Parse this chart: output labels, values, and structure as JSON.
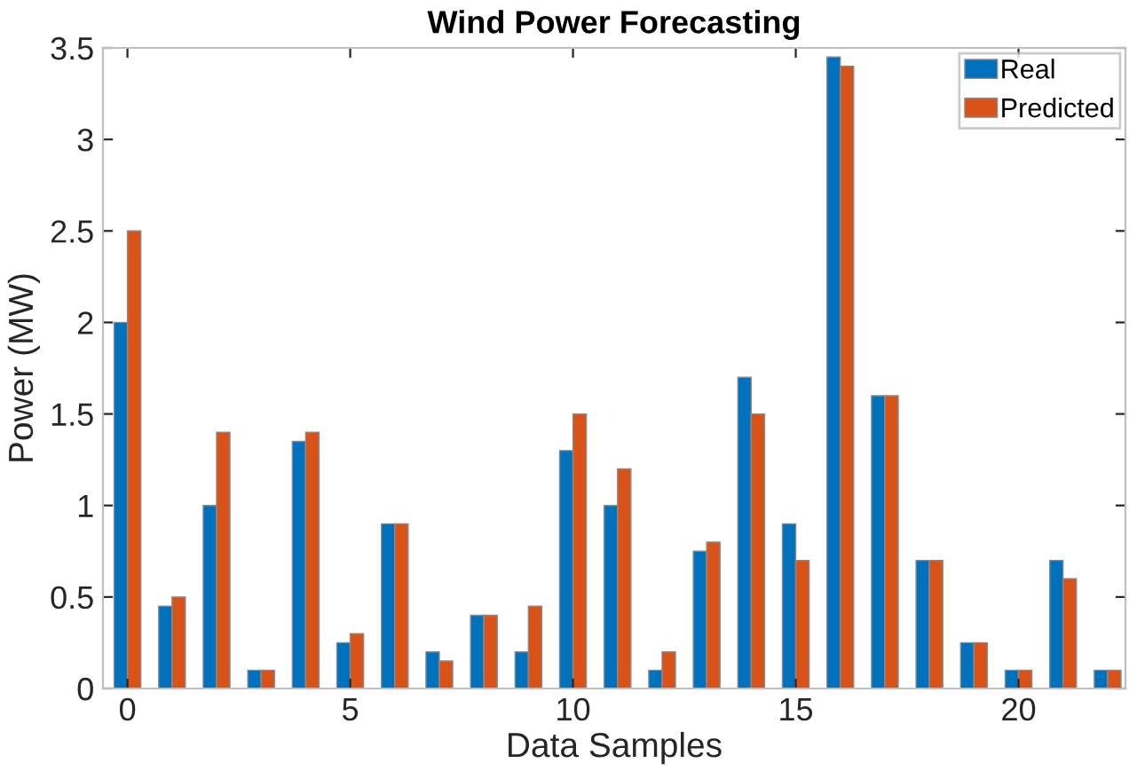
{
  "chart_data": {
    "type": "bar",
    "title": "Wind Power Forecasting",
    "xlabel": "Data Samples",
    "ylabel": "Power (MW)",
    "x": [
      0,
      1,
      2,
      3,
      4,
      5,
      6,
      7,
      8,
      9,
      10,
      11,
      12,
      13,
      14,
      15,
      16,
      17,
      18,
      19,
      20,
      21,
      22
    ],
    "series": [
      {
        "name": "Real",
        "color": "#0072bd",
        "values": [
          2.0,
          0.45,
          1.0,
          0.1,
          1.35,
          0.25,
          0.9,
          0.2,
          0.4,
          0.2,
          1.3,
          1.0,
          0.1,
          0.75,
          1.7,
          0.9,
          3.45,
          1.6,
          0.7,
          0.25,
          0.1,
          0.7,
          0.1
        ]
      },
      {
        "name": "Predicted",
        "color": "#d95319",
        "values": [
          2.5,
          0.5,
          1.4,
          0.1,
          1.4,
          0.3,
          0.9,
          0.15,
          0.4,
          0.45,
          1.5,
          1.2,
          0.2,
          0.8,
          1.5,
          0.7,
          3.4,
          1.6,
          0.7,
          0.25,
          0.1,
          0.6,
          0.1
        ]
      }
    ],
    "xlim": [
      -0.55,
      22.4
    ],
    "xticks": [
      0,
      5,
      10,
      15,
      20
    ],
    "ylim": [
      0,
      3.5
    ],
    "yticks": [
      0,
      0.5,
      1,
      1.5,
      2,
      2.5,
      3,
      3.5
    ],
    "legend": "top right",
    "grid": false
  }
}
